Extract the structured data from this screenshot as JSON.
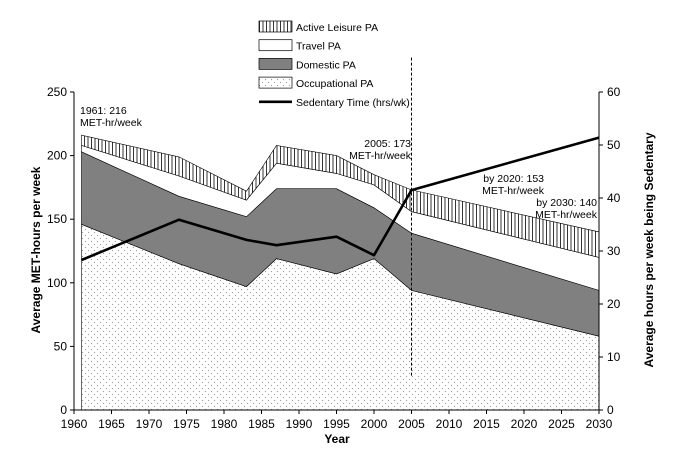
{
  "chart_data": {
    "type": "area",
    "xlabel": "Year",
    "ylabel": "Average MET-hours per week",
    "y2label": "Average hours per week being Sedentary",
    "xlim": [
      1960,
      2030
    ],
    "ylim": [
      0,
      250
    ],
    "y2lim": [
      0,
      60
    ],
    "x_ticks": [
      "1960",
      "1965",
      "1970",
      "1975",
      "1980",
      "1985",
      "1990",
      "1995",
      "2000",
      "2005",
      "2010",
      "2015",
      "2020",
      "2025",
      "2030"
    ],
    "y_ticks": [
      "0",
      "50",
      "100",
      "150",
      "200",
      "250"
    ],
    "y2_ticks": [
      "0",
      "10",
      "20",
      "30",
      "40",
      "50",
      "60"
    ],
    "x": [
      1961,
      1974,
      1983,
      1987,
      1995,
      2000,
      2005,
      2030
    ],
    "stacked_series": [
      {
        "name": "Occupational PA",
        "values": [
          146,
          115,
          97,
          119,
          107,
          119,
          94,
          58
        ]
      },
      {
        "name": "Domestic PA",
        "values": [
          57,
          53,
          55,
          55,
          67,
          40,
          45,
          36
        ]
      },
      {
        "name": "Travel PA",
        "values": [
          5,
          16,
          13,
          20,
          12,
          18,
          17,
          26
        ]
      },
      {
        "name": "Active Leisure PA",
        "values": [
          8,
          15,
          7,
          14,
          14,
          8,
          17,
          20
        ]
      }
    ],
    "line_series": {
      "name": "Sedentary Time (hrs/wk)",
      "axis": "right",
      "x": [
        1961,
        1974,
        1983,
        1987,
        1995,
        2000,
        2005,
        2030
      ],
      "values": [
        28.3,
        35.9,
        32.1,
        31.1,
        32.7,
        29.2,
        41.5,
        51.4
      ]
    },
    "vertical_line": {
      "x": 2005,
      "style": "dashed",
      "from_y": 27,
      "to_y": 277
    },
    "legend": {
      "placement": "top-center",
      "entries": [
        "Active Leisure PA",
        "Travel PA",
        "Domestic PA",
        "Occupational PA",
        "Sedentary Time (hrs/wk)"
      ]
    },
    "annotations": [
      {
        "lines": [
          "1961: 216",
          "MET-hr/week"
        ],
        "x": 1961,
        "y": 216
      },
      {
        "lines": [
          "2005: 173",
          "MET-hr/week"
        ],
        "x": 2005,
        "y": 173
      },
      {
        "lines": [
          "by 2020: 153",
          "MET-hr/week"
        ],
        "x": 2020,
        "y": 153
      },
      {
        "lines": [
          "by 2030: 140",
          "MET-hr/week"
        ],
        "x": 2030,
        "y": 140
      }
    ],
    "colors": {
      "domestic": "#808080",
      "travel": "#ffffff",
      "occupational_dots": "#9a9a9a",
      "leisure_hatch": "#000000",
      "sedentary_line": "#000000"
    }
  }
}
